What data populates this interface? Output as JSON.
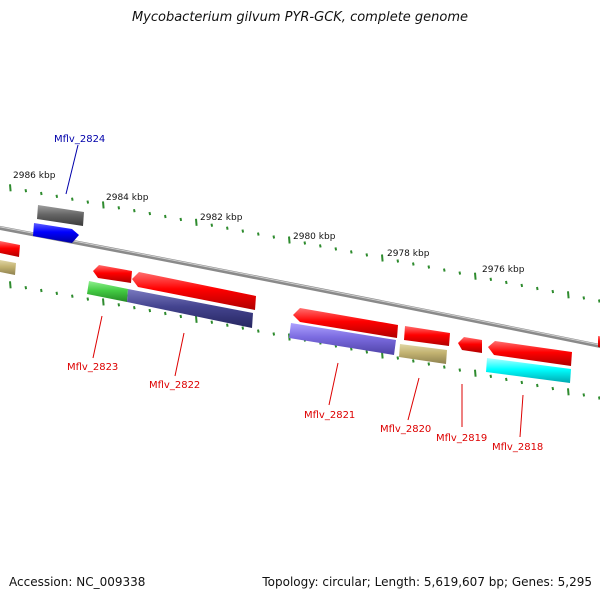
{
  "title": "Mycobacterium gilvum PYR-GCK, complete genome",
  "footer": {
    "accession": "Accession: NC_009338",
    "info": "Topology: circular; Length: 5,619,607 bp; Genes: 5,295"
  },
  "ruler_labels": [
    "2986 kbp",
    "2984 kbp",
    "2982 kbp",
    "2980 kbp",
    "2978 kbp",
    "2976 kbp"
  ],
  "gene_labels": [
    "Mflv_2824",
    "Mflv_2823",
    "Mflv_2822",
    "Mflv_2821",
    "Mflv_2820",
    "Mflv_2819",
    "Mflv_2818"
  ],
  "colors": {
    "backbone": "#888888",
    "tick": "#2e8b2e",
    "red": "#ff0000",
    "blue": "#0000ff",
    "grey": "#666666",
    "tan": "#c2b270",
    "green": "#44cc44",
    "navy": "#44448f",
    "purple": "#7b6be0",
    "cyan": "#00ffff",
    "label_forward": "#0000aa",
    "label_reverse": "#dd0000"
  }
}
